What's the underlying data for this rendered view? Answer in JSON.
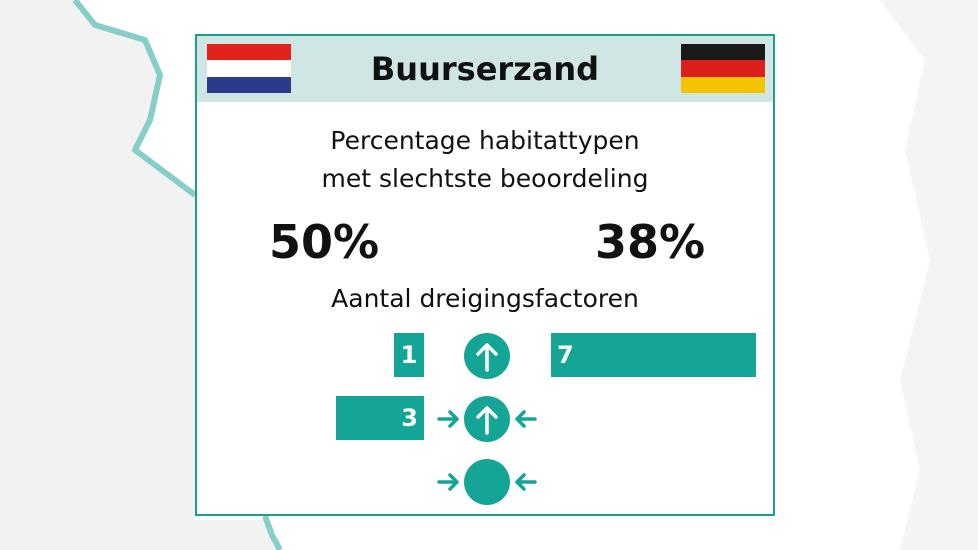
{
  "title": "Buurserzand",
  "subtitle_line1": "Percentage habitattypen",
  "subtitle_line2": "met slechtste beoordeling",
  "nl_percentage": "50%",
  "de_percentage": "38%",
  "threat_label": "Aantal dreigingsfactoren",
  "flags": {
    "nl": [
      "#e0221b",
      "#ffffff",
      "#2c3a8c"
    ],
    "de": [
      "#1a1a1a",
      "#dd1f1a",
      "#f5c400"
    ]
  },
  "threats": [
    {
      "icon": "up-arrow-circle-icon",
      "nl": "1",
      "de": "7"
    },
    {
      "icon": "up-arrow-circle-inward-arrows-icon",
      "nl": "3",
      "de": ""
    },
    {
      "icon": "circle-inward-arrows-icon",
      "nl": "",
      "de": ""
    }
  ],
  "colors": {
    "accent": "#14a596",
    "header_bg": "#cfe6e4",
    "map_line": "#86cfc8"
  }
}
